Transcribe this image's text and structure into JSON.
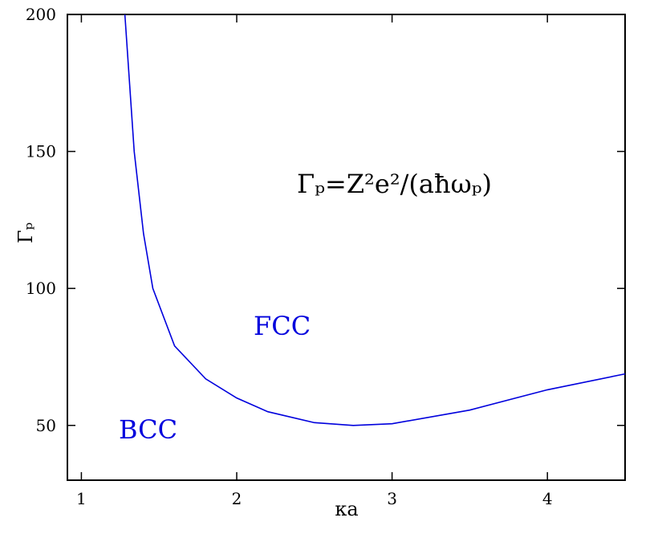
{
  "chart_data": {
    "type": "line",
    "x_label": "κa",
    "y_label": "Γₚ",
    "annotations": [
      "Γₚ=Z²e²/(aħωₚ)",
      "FCC",
      "BCC"
    ],
    "x": [
      1.28,
      1.34,
      1.4,
      1.46,
      1.6,
      1.8,
      2.0,
      2.2,
      2.5,
      2.75,
      3.0,
      3.5,
      4.0,
      4.5
    ],
    "series": [
      {
        "color": "#0000dd",
        "values": [
          200,
          150,
          120,
          100,
          79,
          67,
          60,
          55,
          51,
          50,
          50.6,
          55.6,
          63,
          68.8
        ]
      }
    ],
    "xlim": [
      0.91,
      4.5
    ],
    "xticks": [
      1,
      2,
      3,
      4
    ],
    "ylim": [
      30,
      200
    ],
    "yticks": [
      50,
      100,
      150,
      200
    ]
  }
}
